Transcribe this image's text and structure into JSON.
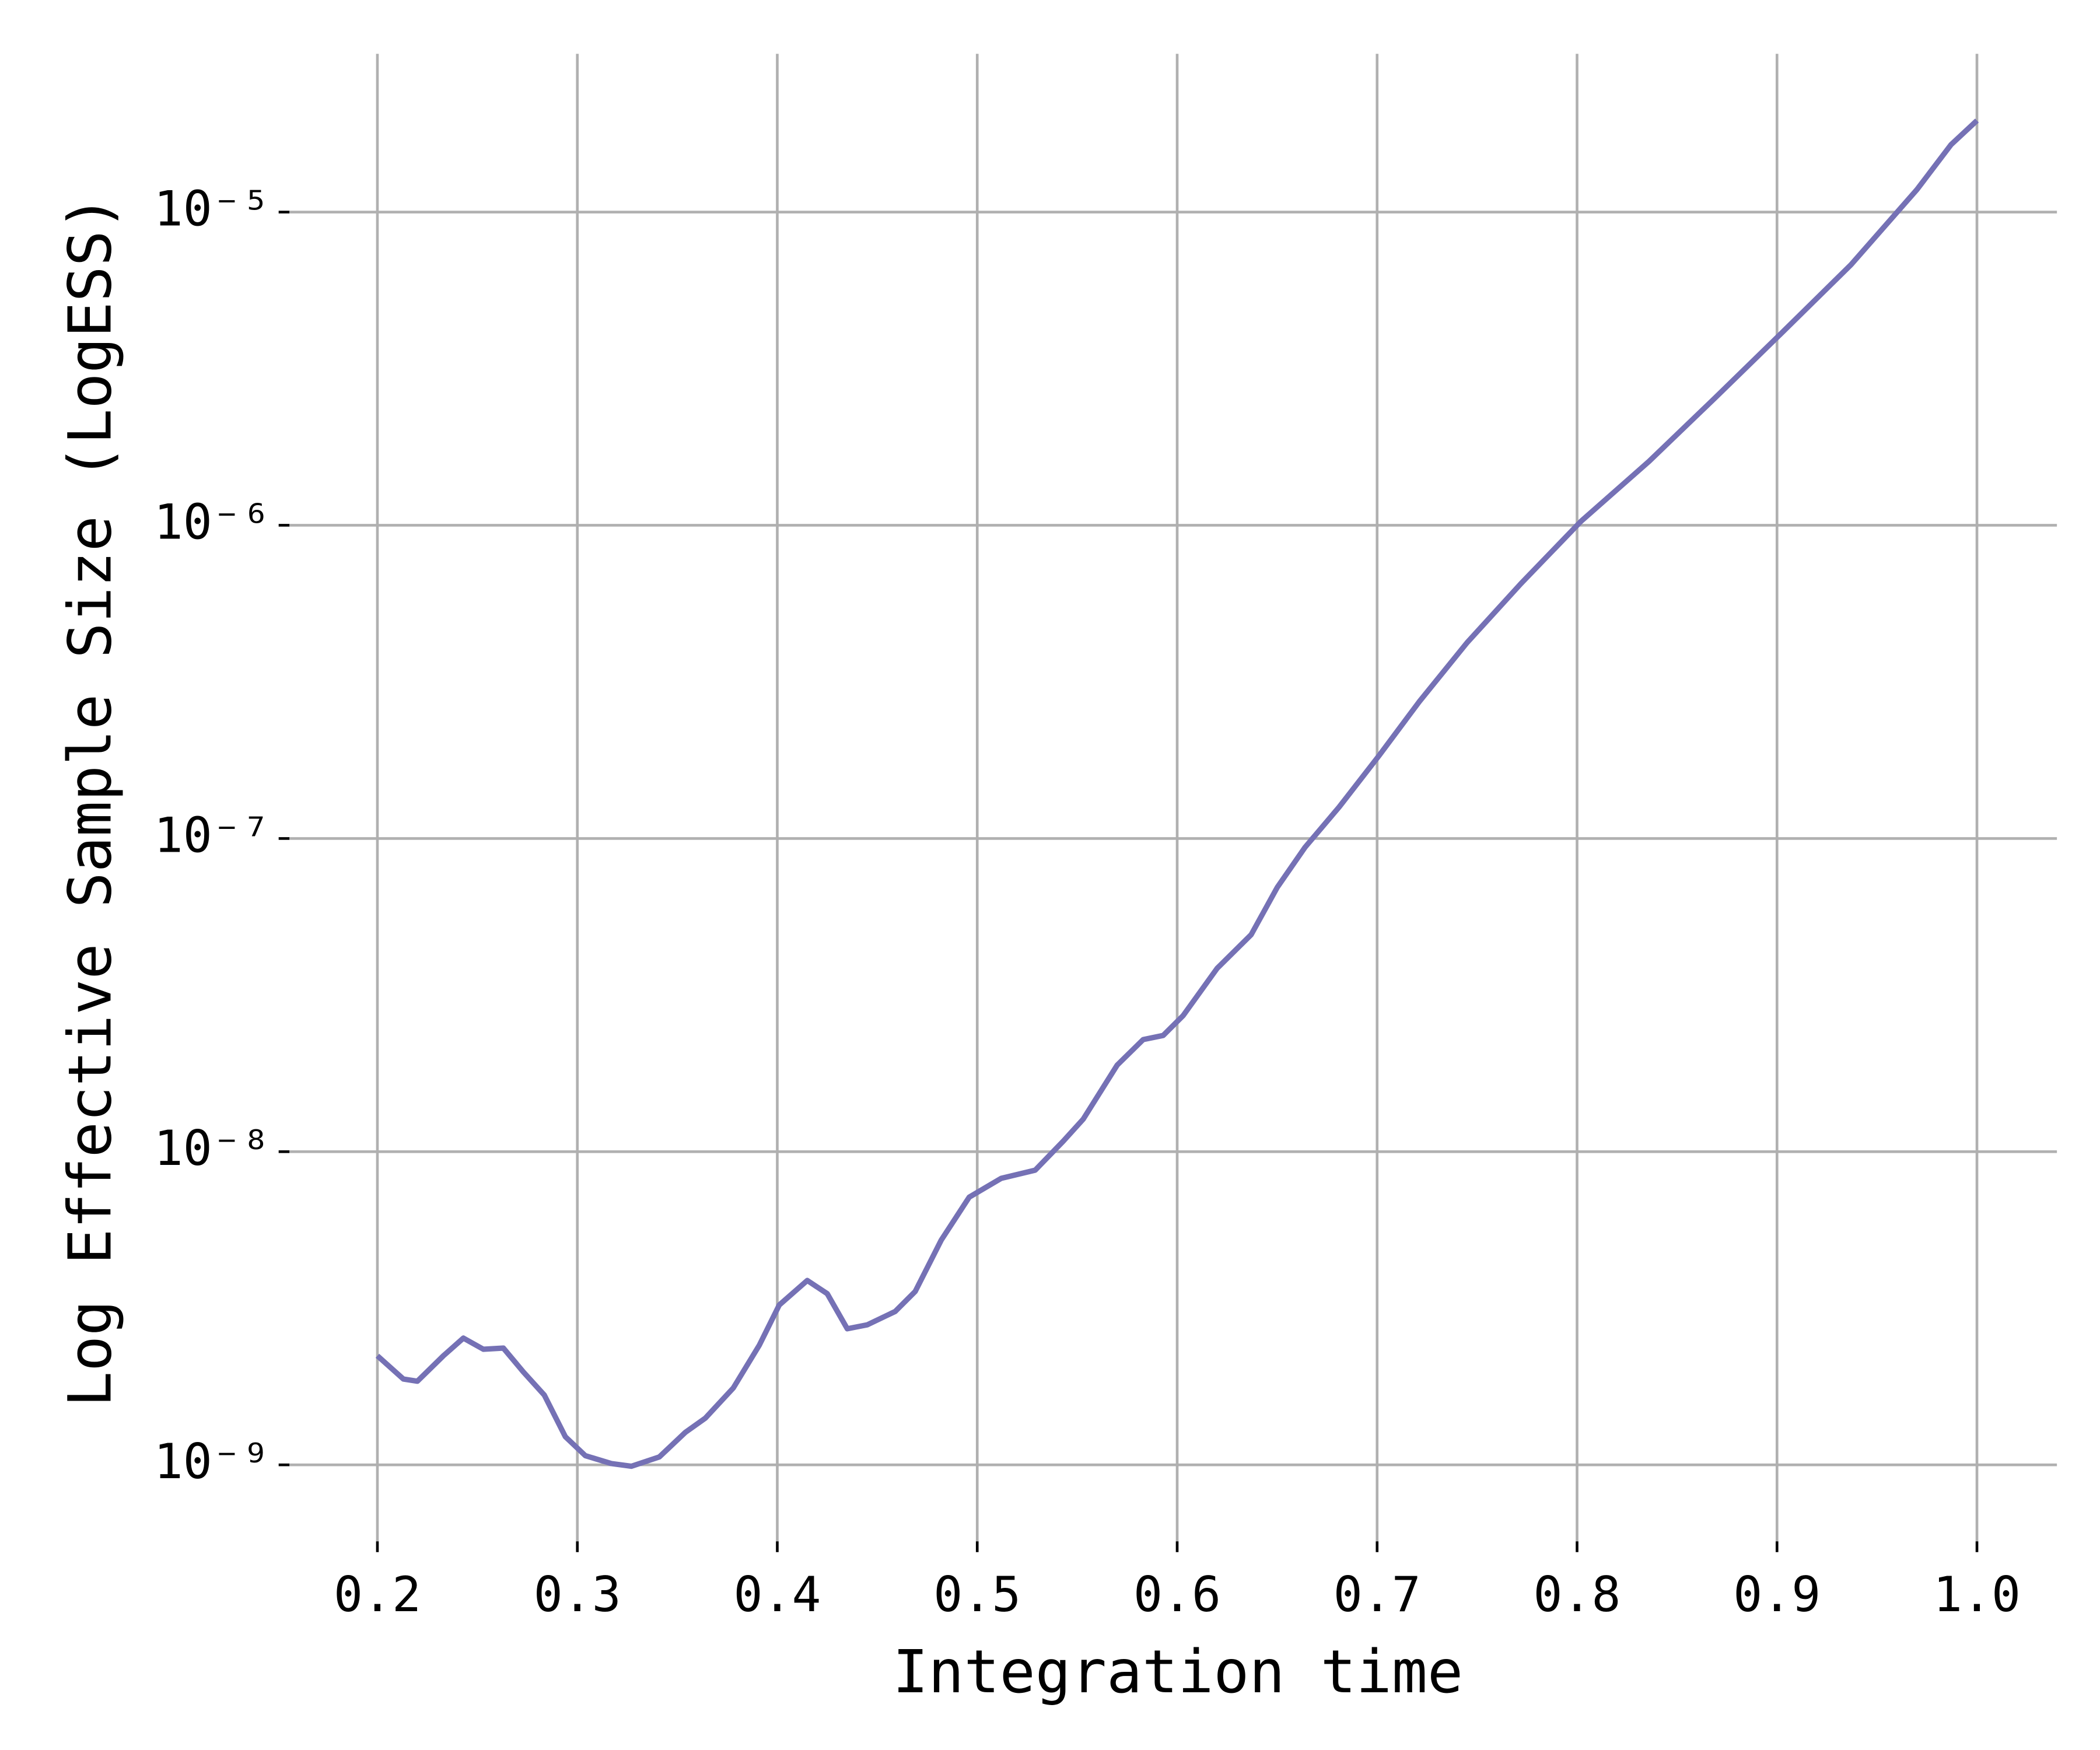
{
  "chart_data": {
    "type": "line",
    "x_label": "Integration time",
    "y_label": "Log Effective Sample Size (LogESS)",
    "yscale": "log",
    "grid": true,
    "xlim": [
      0.156,
      1.04
    ],
    "ylim": [
      5.7e-10,
      3.2e-05
    ],
    "xticks": [
      0.2,
      0.3,
      0.4,
      0.5,
      0.6,
      0.7,
      0.8,
      0.9,
      {
        "value": 1,
        "label": "1.0"
      }
    ],
    "yticks": [
      {
        "value": 1e-09,
        "label": "10⁻⁹"
      },
      {
        "value": 1e-08,
        "label": "10⁻⁸"
      },
      {
        "value": 1e-07,
        "label": "10⁻⁷"
      },
      {
        "value": 1e-06,
        "label": "10⁻⁶"
      },
      {
        "value": 1e-05,
        "label": "10⁻⁵"
      }
    ],
    "x": [
      0.2,
      0.213,
      0.22,
      0.233,
      0.243,
      0.253,
      0.263,
      0.273,
      0.2835,
      0.294,
      0.304,
      0.317,
      0.327,
      0.341,
      0.354,
      0.364,
      0.378,
      0.391,
      0.401,
      0.415,
      0.425,
      0.435,
      0.445,
      0.459,
      0.469,
      0.482,
      0.496,
      0.512,
      0.529,
      0.543,
      0.553,
      0.57,
      0.583,
      0.593,
      0.603,
      0.62,
      0.637,
      0.65,
      0.664,
      0.681,
      0.701,
      0.721,
      0.745,
      0.772,
      0.802,
      0.836,
      0.869,
      0.903,
      0.937,
      0.97,
      0.987,
      1.0
    ],
    "series": [
      {
        "color": "#7571b5",
        "values": [
          2.23e-09,
          1.88e-09,
          1.85e-09,
          2.23e-09,
          2.54e-09,
          2.34e-09,
          2.36e-09,
          1.98e-09,
          1.67e-09,
          1.23e-09,
          1.07e-09,
          1.01e-09,
          9.9e-10,
          1.06e-09,
          1.27e-09,
          1.41e-09,
          1.76e-09,
          2.41e-09,
          3.24e-09,
          3.88e-09,
          3.52e-09,
          2.72e-09,
          2.8e-09,
          3.09e-09,
          3.58e-09,
          5.22e-09,
          7.16e-09,
          8.22e-09,
          8.73e-09,
          1.08e-08,
          1.27e-08,
          1.89e-08,
          2.28e-08,
          2.35e-08,
          2.72e-08,
          3.85e-08,
          4.93e-08,
          6.97e-08,
          9.38e-08,
          1.26e-07,
          1.84e-07,
          2.73e-07,
          4.22e-07,
          6.52e-07,
          1.03e-06,
          1.6e-06,
          2.55e-06,
          4.15e-06,
          6.79e-06,
          1.18e-05,
          1.64e-05,
          1.96e-05
        ]
      }
    ]
  }
}
